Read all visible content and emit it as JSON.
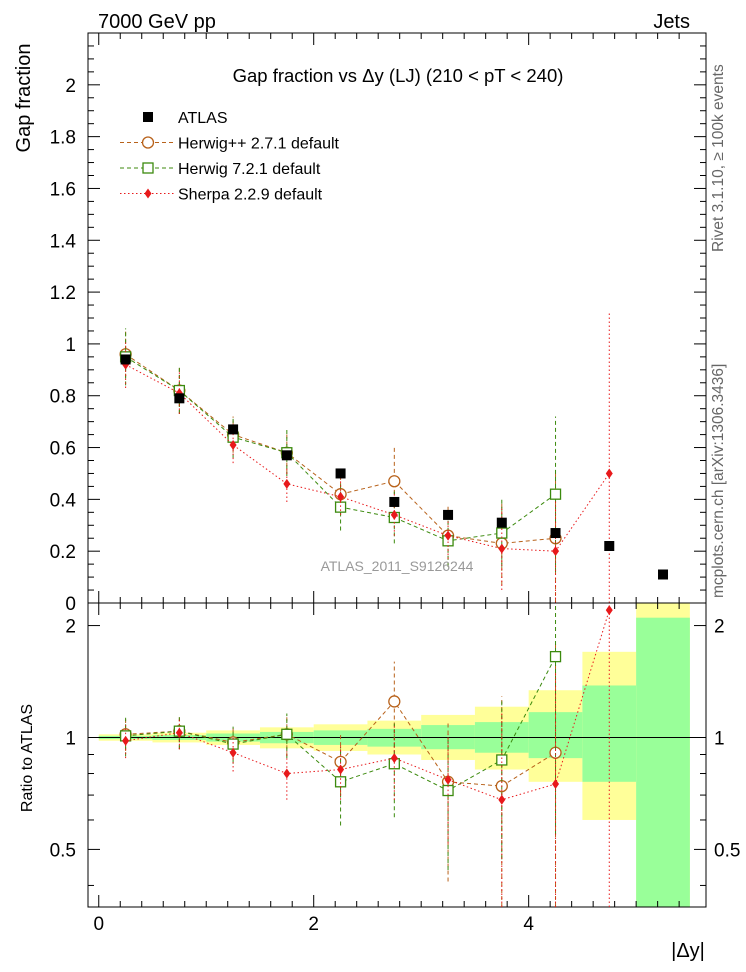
{
  "header": {
    "left": "7000 GeV pp",
    "right": "Jets"
  },
  "side": {
    "rivet": "Rivet 3.1.10, ≥ 100k events",
    "mcplots": "mcplots.cern.ch [arXiv:1306.3436]"
  },
  "watermark": "ATLAS_2011_S9126244",
  "chart_data": [
    {
      "type": "scatter",
      "title": "Gap fraction vs  Δy (LJ) (210 < pT < 240)",
      "ylabel": "Gap fraction",
      "xlabel": "|Δy|",
      "xlim": [
        -0.1,
        5.65
      ],
      "ylim": [
        0,
        2.2
      ],
      "yticks": [
        "0",
        "0.2",
        "0.4",
        "0.6",
        "0.8",
        "1",
        "1.2",
        "1.4",
        "1.6",
        "1.8",
        "2"
      ],
      "legend_position": "top-left",
      "series": [
        {
          "name": "ATLAS",
          "style": "data",
          "color": "#000000",
          "x": [
            0.25,
            0.75,
            1.25,
            1.75,
            2.25,
            2.75,
            3.25,
            3.75,
            4.25,
            4.75,
            5.25
          ],
          "y": [
            0.94,
            0.79,
            0.67,
            0.57,
            0.5,
            0.39,
            0.34,
            0.31,
            0.27,
            0.22,
            0.11
          ]
        },
        {
          "name": "Herwig++ 2.7.1 default",
          "style": "circle",
          "color": "#b8621b",
          "x": [
            0.25,
            0.75,
            1.25,
            1.75,
            2.25,
            2.75,
            3.25,
            3.75,
            4.25
          ],
          "y": [
            0.96,
            0.82,
            0.65,
            0.58,
            0.42,
            0.47,
            0.26,
            0.23,
            0.25
          ],
          "err": [
            0.09,
            0.09,
            0.07,
            0.08,
            0.08,
            0.13,
            0.12,
            0.16,
            0.25
          ]
        },
        {
          "name": "Herwig 7.2.1 default",
          "style": "square",
          "color": "#3c8a0e",
          "x": [
            0.25,
            0.75,
            1.25,
            1.75,
            2.25,
            2.75,
            3.25,
            3.75,
            4.25
          ],
          "y": [
            0.95,
            0.82,
            0.64,
            0.58,
            0.37,
            0.33,
            0.24,
            0.27,
            0.42
          ],
          "err": [
            0.11,
            0.09,
            0.08,
            0.09,
            0.09,
            0.1,
            0.1,
            0.13,
            0.3
          ]
        },
        {
          "name": "Sherpa 2.2.9 default",
          "style": "diamond",
          "color": "#e8191b",
          "x": [
            0.25,
            0.75,
            1.25,
            1.75,
            2.25,
            2.75,
            3.25,
            3.75,
            4.25,
            4.75
          ],
          "y": [
            0.92,
            0.81,
            0.61,
            0.46,
            0.41,
            0.34,
            0.26,
            0.21,
            0.2,
            0.5
          ],
          "err": [
            0.09,
            0.08,
            0.07,
            0.07,
            0.07,
            0.08,
            0.09,
            0.16,
            0.2,
            0.62
          ]
        }
      ]
    },
    {
      "type": "scatter",
      "ylabel": "Ratio to ATLAS",
      "xlabel": "|Δy|",
      "xlim": [
        -0.1,
        5.65
      ],
      "ylim": [
        0.35,
        2.3
      ],
      "ylog": true,
      "yticks": [
        "0.5",
        "1",
        "2"
      ],
      "xticks": [
        "0",
        "2",
        "4"
      ],
      "bands": {
        "x_edges": [
          0.0,
          0.5,
          1.0,
          1.5,
          2.0,
          2.5,
          3.0,
          3.5,
          4.0,
          4.5,
          5.0,
          5.5
        ],
        "green_lo": [
          0.99,
          0.985,
          0.975,
          0.965,
          0.955,
          0.945,
          0.93,
          0.91,
          0.88,
          0.76,
          0.35
        ],
        "green_hi": [
          1.01,
          1.015,
          1.025,
          1.035,
          1.045,
          1.055,
          1.08,
          1.1,
          1.17,
          1.38,
          2.1
        ],
        "yellow_lo": [
          0.98,
          0.97,
          0.955,
          0.935,
          0.92,
          0.9,
          0.87,
          0.82,
          0.76,
          0.6,
          0.35
        ],
        "yellow_hi": [
          1.02,
          1.03,
          1.045,
          1.065,
          1.085,
          1.11,
          1.15,
          1.21,
          1.34,
          1.7,
          2.3
        ]
      },
      "series": [
        {
          "name": "Herwig++ 2.7.1 default",
          "style": "circle",
          "color": "#b8621b",
          "x": [
            0.25,
            0.75,
            1.25,
            1.75,
            2.25,
            2.75,
            3.25,
            3.75,
            4.25
          ],
          "y": [
            1.02,
            1.04,
            0.97,
            1.02,
            0.86,
            1.25,
            0.76,
            0.74,
            0.91
          ],
          "err": [
            0.1,
            0.11,
            0.1,
            0.13,
            0.16,
            0.35,
            0.35,
            0.55,
            0.9
          ]
        },
        {
          "name": "Herwig 7.2.1 default",
          "style": "square",
          "color": "#3c8a0e",
          "x": [
            0.25,
            0.75,
            1.25,
            1.75,
            2.25,
            2.75,
            3.25,
            3.75,
            4.25
          ],
          "y": [
            1.01,
            1.04,
            0.96,
            1.02,
            0.76,
            0.85,
            0.72,
            0.87,
            1.65
          ],
          "err": [
            0.12,
            0.11,
            0.11,
            0.14,
            0.18,
            0.24,
            0.28,
            0.4,
            1.1
          ]
        },
        {
          "name": "Sherpa 2.2.9 default",
          "style": "diamond",
          "color": "#e8191b",
          "x": [
            0.25,
            0.75,
            1.25,
            1.75,
            2.25,
            2.75,
            3.25,
            3.75,
            4.25,
            4.75
          ],
          "y": [
            0.98,
            1.03,
            0.91,
            0.8,
            0.82,
            0.88,
            0.77,
            0.68,
            0.75,
            2.2
          ],
          "err": [
            0.1,
            0.1,
            0.1,
            0.12,
            0.14,
            0.2,
            0.25,
            0.5,
            0.75,
            2.7
          ]
        }
      ]
    }
  ]
}
